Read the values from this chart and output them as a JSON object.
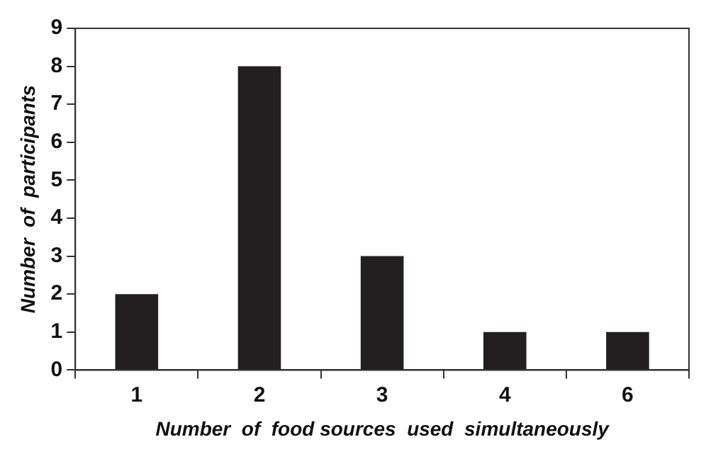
{
  "chart_data": {
    "type": "bar",
    "xlabel": "Number  of  food sources  used  simultaneously",
    "ylabel": "Number  of  participants",
    "categories": [
      "1",
      "2",
      "3",
      "4",
      "6"
    ],
    "values": [
      2,
      8,
      3,
      1,
      1
    ],
    "color": "#231f20",
    "ylim": [
      0,
      9
    ],
    "yticks": [
      0,
      1,
      2,
      3,
      4,
      5,
      6,
      7,
      8,
      9
    ],
    "grid": false,
    "legend": false
  }
}
